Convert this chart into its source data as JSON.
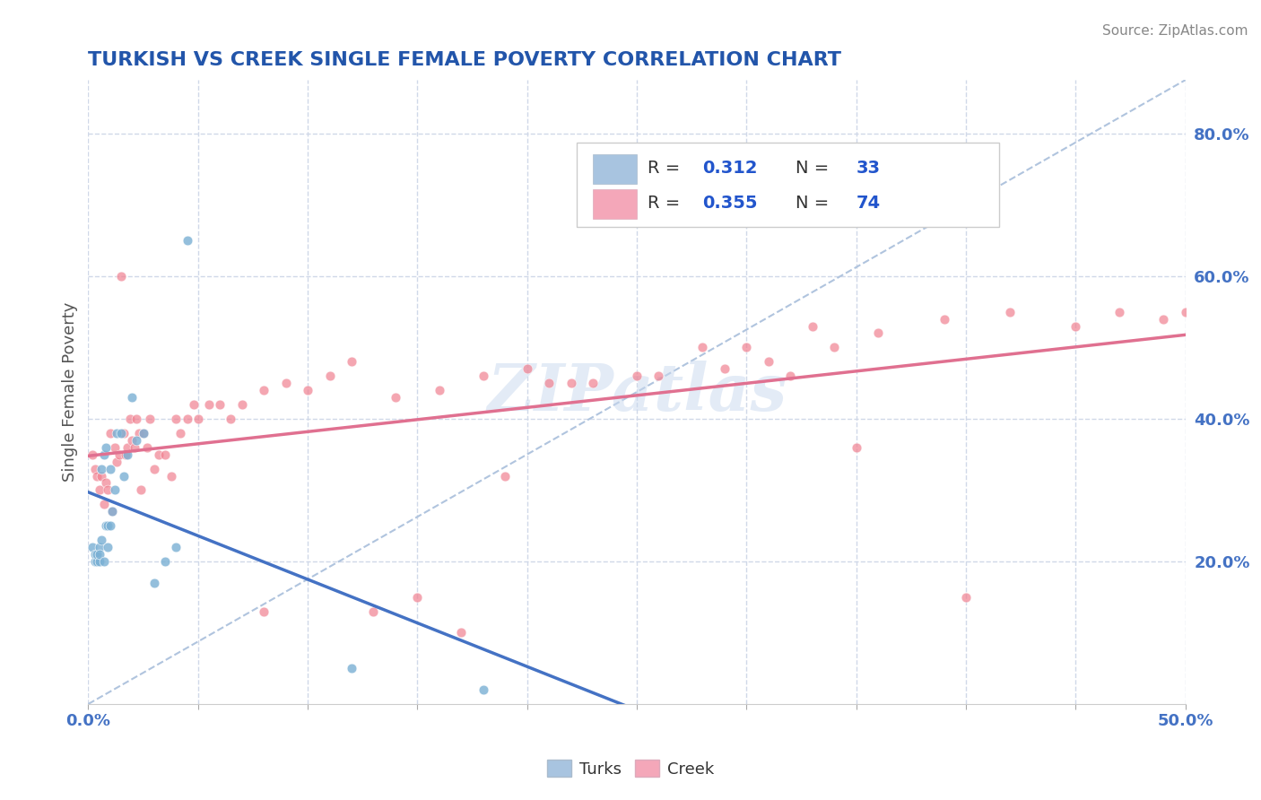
{
  "title": "TURKISH VS CREEK SINGLE FEMALE POVERTY CORRELATION CHART",
  "source": "Source: ZipAtlas.com",
  "ylabel": "Single Female Poverty",
  "xlim": [
    0.0,
    0.5
  ],
  "ylim": [
    0.0,
    0.875
  ],
  "right_yticks": [
    0.2,
    0.4,
    0.6,
    0.8
  ],
  "right_yticklabels": [
    "20.0%",
    "40.0%",
    "60.0%",
    "80.0%"
  ],
  "turks_color": "#a8c4e0",
  "creek_color": "#f4a7b9",
  "turks_scatter_color": "#7ab0d4",
  "creek_scatter_color": "#f08090",
  "turks_line_color": "#4472c4",
  "creek_line_color": "#e07090",
  "ref_line_color": "#b0c4de",
  "turks_R": 0.312,
  "turks_N": 33,
  "creek_R": 0.355,
  "creek_N": 74,
  "turks_x": [
    0.002,
    0.003,
    0.003,
    0.004,
    0.004,
    0.005,
    0.005,
    0.005,
    0.006,
    0.006,
    0.007,
    0.007,
    0.008,
    0.008,
    0.009,
    0.009,
    0.01,
    0.01,
    0.011,
    0.012,
    0.013,
    0.015,
    0.016,
    0.018,
    0.02,
    0.022,
    0.025,
    0.03,
    0.035,
    0.04,
    0.045,
    0.12,
    0.18
  ],
  "turks_y": [
    0.22,
    0.2,
    0.21,
    0.2,
    0.21,
    0.22,
    0.2,
    0.21,
    0.33,
    0.23,
    0.35,
    0.2,
    0.25,
    0.36,
    0.22,
    0.25,
    0.33,
    0.25,
    0.27,
    0.3,
    0.38,
    0.38,
    0.32,
    0.35,
    0.43,
    0.37,
    0.38,
    0.17,
    0.2,
    0.22,
    0.65,
    0.05,
    0.02
  ],
  "creek_x": [
    0.002,
    0.003,
    0.004,
    0.005,
    0.006,
    0.007,
    0.008,
    0.009,
    0.01,
    0.011,
    0.012,
    0.013,
    0.014,
    0.015,
    0.016,
    0.017,
    0.018,
    0.019,
    0.02,
    0.021,
    0.022,
    0.023,
    0.024,
    0.025,
    0.027,
    0.028,
    0.03,
    0.032,
    0.035,
    0.038,
    0.04,
    0.042,
    0.045,
    0.048,
    0.05,
    0.055,
    0.06,
    0.065,
    0.07,
    0.08,
    0.09,
    0.1,
    0.11,
    0.12,
    0.14,
    0.16,
    0.18,
    0.2,
    0.22,
    0.25,
    0.28,
    0.3,
    0.33,
    0.36,
    0.39,
    0.42,
    0.45,
    0.47,
    0.49,
    0.5,
    0.15,
    0.13,
    0.17,
    0.35,
    0.4,
    0.19,
    0.08,
    0.21,
    0.23,
    0.26,
    0.29,
    0.31,
    0.32,
    0.34
  ],
  "creek_y": [
    0.35,
    0.33,
    0.32,
    0.3,
    0.32,
    0.28,
    0.31,
    0.3,
    0.38,
    0.27,
    0.36,
    0.34,
    0.35,
    0.6,
    0.38,
    0.35,
    0.36,
    0.4,
    0.37,
    0.36,
    0.4,
    0.38,
    0.3,
    0.38,
    0.36,
    0.4,
    0.33,
    0.35,
    0.35,
    0.32,
    0.4,
    0.38,
    0.4,
    0.42,
    0.4,
    0.42,
    0.42,
    0.4,
    0.42,
    0.44,
    0.45,
    0.44,
    0.46,
    0.48,
    0.43,
    0.44,
    0.46,
    0.47,
    0.45,
    0.46,
    0.5,
    0.5,
    0.53,
    0.52,
    0.54,
    0.55,
    0.53,
    0.55,
    0.54,
    0.55,
    0.15,
    0.13,
    0.1,
    0.36,
    0.15,
    0.32,
    0.13,
    0.45,
    0.45,
    0.46,
    0.47,
    0.48,
    0.46,
    0.5
  ],
  "watermark": "ZIPatlas",
  "background_color": "#ffffff",
  "grid_color": "#d0d8e8",
  "title_color": "#2255aa",
  "source_color": "#888888",
  "axis_label_color": "#4472c4",
  "right_tick_color": "#4472c4",
  "blue_color": "#2255cc"
}
